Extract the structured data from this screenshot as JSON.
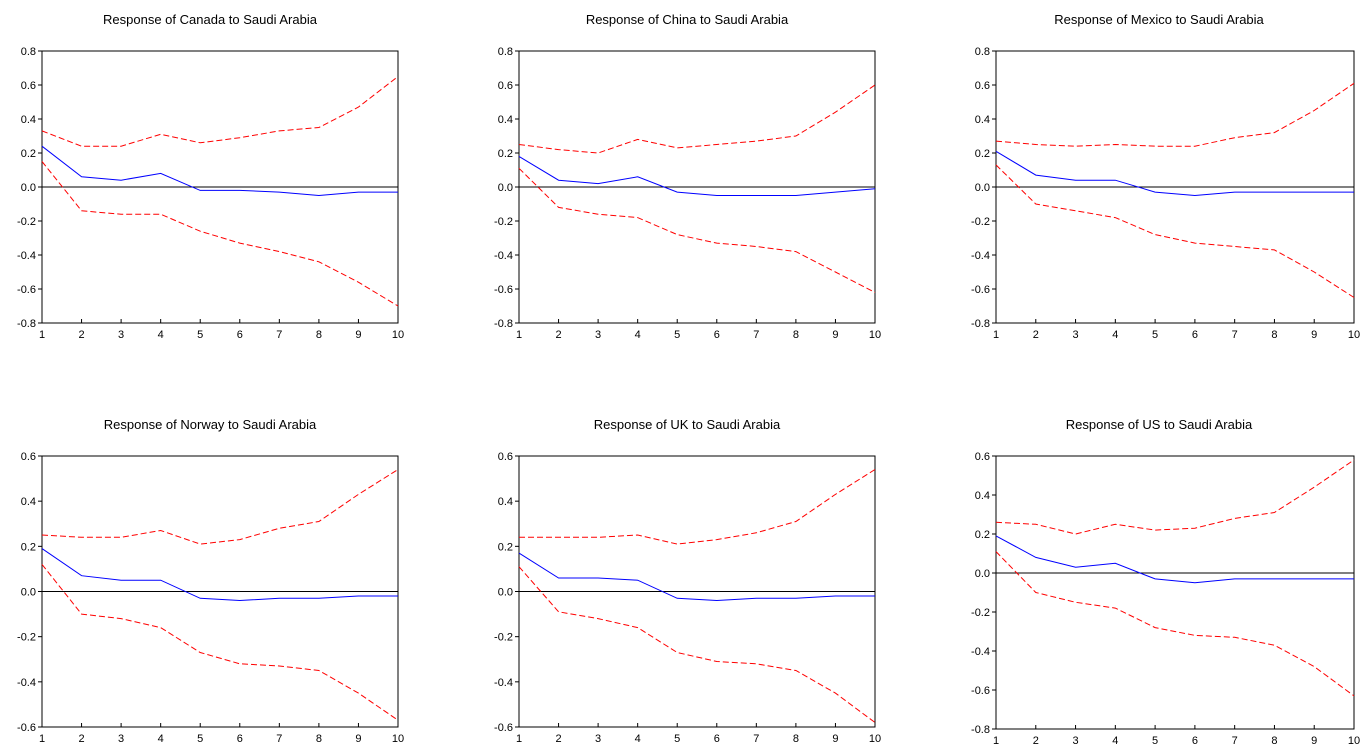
{
  "chart_data": [
    {
      "type": "line",
      "title": "Response of Canada to Saudi Arabia",
      "x": [
        1,
        2,
        3,
        4,
        5,
        6,
        7,
        8,
        9,
        10
      ],
      "ylim": [
        -0.8,
        0.8
      ],
      "yticks": [
        "0.8",
        "0.6",
        "0.4",
        "0.2",
        "0.0",
        "-0.2",
        "-0.4",
        "-0.6",
        "-0.8"
      ],
      "ytick_values": [
        0.8,
        0.6,
        0.4,
        0.2,
        0.0,
        -0.2,
        -0.4,
        -0.6,
        -0.8
      ],
      "xticks": [
        "1",
        "2",
        "3",
        "4",
        "5",
        "6",
        "7",
        "8",
        "9",
        "10"
      ],
      "series": [
        {
          "values": [
            0.24,
            0.06,
            0.04,
            0.08,
            -0.02,
            -0.02,
            -0.03,
            -0.05,
            -0.03,
            -0.03
          ],
          "color": "#0000ff",
          "style": "solid"
        },
        {
          "values": [
            0.33,
            0.24,
            0.24,
            0.31,
            0.26,
            0.29,
            0.33,
            0.35,
            0.47,
            0.65
          ],
          "color": "#ff0000",
          "style": "dashed"
        },
        {
          "values": [
            0.15,
            -0.14,
            -0.16,
            -0.16,
            -0.26,
            -0.33,
            -0.38,
            -0.44,
            -0.56,
            -0.7
          ],
          "color": "#ff0000",
          "style": "dashed"
        }
      ],
      "zero_line": true
    },
    {
      "type": "line",
      "title": "Response of China to Saudi Arabia",
      "x": [
        1,
        2,
        3,
        4,
        5,
        6,
        7,
        8,
        9,
        10
      ],
      "ylim": [
        -0.8,
        0.8
      ],
      "yticks": [
        "0.8",
        "0.6",
        "0.4",
        "0.2",
        "0.0",
        "-0.2",
        "-0.4",
        "-0.6",
        "-0.8"
      ],
      "ytick_values": [
        0.8,
        0.6,
        0.4,
        0.2,
        0.0,
        -0.2,
        -0.4,
        -0.6,
        -0.8
      ],
      "xticks": [
        "1",
        "2",
        "3",
        "4",
        "5",
        "6",
        "7",
        "8",
        "9",
        "10"
      ],
      "series": [
        {
          "values": [
            0.18,
            0.04,
            0.02,
            0.06,
            -0.03,
            -0.05,
            -0.05,
            -0.05,
            -0.03,
            -0.01
          ],
          "color": "#0000ff",
          "style": "solid"
        },
        {
          "values": [
            0.25,
            0.22,
            0.2,
            0.28,
            0.23,
            0.25,
            0.27,
            0.3,
            0.44,
            0.6
          ],
          "color": "#ff0000",
          "style": "dashed"
        },
        {
          "values": [
            0.11,
            -0.12,
            -0.16,
            -0.18,
            -0.28,
            -0.33,
            -0.35,
            -0.38,
            -0.5,
            -0.62
          ],
          "color": "#ff0000",
          "style": "dashed"
        }
      ],
      "zero_line": true
    },
    {
      "type": "line",
      "title": "Response of Mexico to Saudi Arabia",
      "x": [
        1,
        2,
        3,
        4,
        5,
        6,
        7,
        8,
        9,
        10
      ],
      "ylim": [
        -0.8,
        0.8
      ],
      "yticks": [
        "0.8",
        "0.6",
        "0.4",
        "0.2",
        "0.0",
        "-0.2",
        "-0.4",
        "-0.6",
        "-0.8"
      ],
      "ytick_values": [
        0.8,
        0.6,
        0.4,
        0.2,
        0.0,
        -0.2,
        -0.4,
        -0.6,
        -0.8
      ],
      "xticks": [
        "1",
        "2",
        "3",
        "4",
        "5",
        "6",
        "7",
        "8",
        "9",
        "10"
      ],
      "series": [
        {
          "values": [
            0.21,
            0.07,
            0.04,
            0.04,
            -0.03,
            -0.05,
            -0.03,
            -0.03,
            -0.03,
            -0.03
          ],
          "color": "#0000ff",
          "style": "solid"
        },
        {
          "values": [
            0.27,
            0.25,
            0.24,
            0.25,
            0.24,
            0.24,
            0.29,
            0.32,
            0.45,
            0.61
          ],
          "color": "#ff0000",
          "style": "dashed"
        },
        {
          "values": [
            0.13,
            -0.1,
            -0.14,
            -0.18,
            -0.28,
            -0.33,
            -0.35,
            -0.37,
            -0.5,
            -0.65
          ],
          "color": "#ff0000",
          "style": "dashed"
        }
      ],
      "zero_line": true
    },
    {
      "type": "line",
      "title": "Response of Norway to Saudi Arabia",
      "x": [
        1,
        2,
        3,
        4,
        5,
        6,
        7,
        8,
        9,
        10
      ],
      "ylim": [
        -0.6,
        0.6
      ],
      "yticks": [
        "0.6",
        "0.4",
        "0.2",
        "0.0",
        "-0.2",
        "-0.4",
        "-0.6"
      ],
      "ytick_values": [
        0.6,
        0.4,
        0.2,
        0.0,
        -0.2,
        -0.4,
        -0.6
      ],
      "xticks": [
        "1",
        "2",
        "3",
        "4",
        "5",
        "6",
        "7",
        "8",
        "9",
        "10"
      ],
      "series": [
        {
          "values": [
            0.19,
            0.07,
            0.05,
            0.05,
            -0.03,
            -0.04,
            -0.03,
            -0.03,
            -0.02,
            -0.02
          ],
          "color": "#0000ff",
          "style": "solid"
        },
        {
          "values": [
            0.25,
            0.24,
            0.24,
            0.27,
            0.21,
            0.23,
            0.28,
            0.31,
            0.43,
            0.54
          ],
          "color": "#ff0000",
          "style": "dashed"
        },
        {
          "values": [
            0.12,
            -0.1,
            -0.12,
            -0.16,
            -0.27,
            -0.32,
            -0.33,
            -0.35,
            -0.45,
            -0.57
          ],
          "color": "#ff0000",
          "style": "dashed"
        }
      ],
      "zero_line": true
    },
    {
      "type": "line",
      "title": "Response of UK to Saudi Arabia",
      "x": [
        1,
        2,
        3,
        4,
        5,
        6,
        7,
        8,
        9,
        10
      ],
      "ylim": [
        -0.6,
        0.6
      ],
      "yticks": [
        "0.6",
        "0.4",
        "0.2",
        "0.0",
        "-0.2",
        "-0.4",
        "-0.6"
      ],
      "ytick_values": [
        0.6,
        0.4,
        0.2,
        0.0,
        -0.2,
        -0.4,
        -0.6
      ],
      "xticks": [
        "1",
        "2",
        "3",
        "4",
        "5",
        "6",
        "7",
        "8",
        "9",
        "10"
      ],
      "series": [
        {
          "values": [
            0.17,
            0.06,
            0.06,
            0.05,
            -0.03,
            -0.04,
            -0.03,
            -0.03,
            -0.02,
            -0.02
          ],
          "color": "#0000ff",
          "style": "solid"
        },
        {
          "values": [
            0.24,
            0.24,
            0.24,
            0.25,
            0.21,
            0.23,
            0.26,
            0.31,
            0.43,
            0.54
          ],
          "color": "#ff0000",
          "style": "dashed"
        },
        {
          "values": [
            0.11,
            -0.09,
            -0.12,
            -0.16,
            -0.27,
            -0.31,
            -0.32,
            -0.35,
            -0.45,
            -0.58
          ],
          "color": "#ff0000",
          "style": "dashed"
        }
      ],
      "zero_line": true
    },
    {
      "type": "line",
      "title": "Response of US to Saudi Arabia",
      "x": [
        1,
        2,
        3,
        4,
        5,
        6,
        7,
        8,
        9,
        10
      ],
      "ylim": [
        -0.8,
        0.6
      ],
      "yticks": [
        "0.6",
        "0.4",
        "0.2",
        "0.0",
        "-0.2",
        "-0.4",
        "-0.6",
        "-0.8"
      ],
      "ytick_values": [
        0.6,
        0.4,
        0.2,
        0.0,
        -0.2,
        -0.4,
        -0.6,
        -0.8
      ],
      "xticks": [
        "1",
        "2",
        "3",
        "4",
        "5",
        "6",
        "7",
        "8",
        "9",
        "10"
      ],
      "series": [
        {
          "values": [
            0.19,
            0.08,
            0.03,
            0.05,
            -0.03,
            -0.05,
            -0.03,
            -0.03,
            -0.03,
            -0.03
          ],
          "color": "#0000ff",
          "style": "solid"
        },
        {
          "values": [
            0.26,
            0.25,
            0.2,
            0.25,
            0.22,
            0.23,
            0.28,
            0.31,
            0.44,
            0.58
          ],
          "color": "#ff0000",
          "style": "dashed"
        },
        {
          "values": [
            0.11,
            -0.1,
            -0.15,
            -0.18,
            -0.28,
            -0.32,
            -0.33,
            -0.37,
            -0.48,
            -0.63
          ],
          "color": "#ff0000",
          "style": "dashed"
        }
      ],
      "zero_line": true
    }
  ]
}
